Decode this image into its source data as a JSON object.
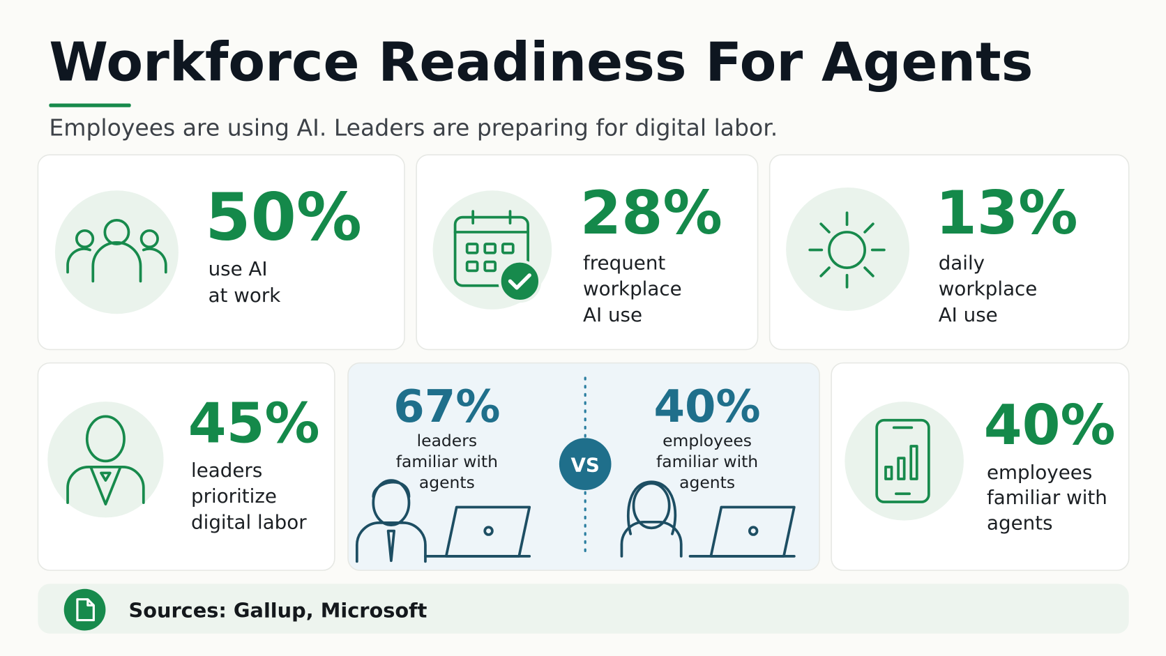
{
  "header": {
    "title": "Workforce Readiness For Agents",
    "subtitle": "Employees are using AI. Leaders are preparing for digital labor."
  },
  "stats": [
    {
      "value": "50%",
      "lines": [
        "use AI",
        "at work"
      ]
    },
    {
      "value": "28%",
      "lines": [
        "frequent",
        "workplace",
        "AI use"
      ]
    },
    {
      "value": "13%",
      "lines": [
        "daily",
        "workplace",
        "AI use"
      ]
    },
    {
      "value": "45%",
      "lines": [
        "leaders",
        "prioritize",
        "digital labor"
      ]
    },
    {
      "value": "40%",
      "lines": [
        "employees",
        "familiar with",
        "agents"
      ]
    }
  ],
  "comparison": {
    "left": {
      "value": "67%",
      "lines": [
        "leaders",
        "familiar with",
        "agents"
      ]
    },
    "vs": "VS",
    "right": {
      "value": "40%",
      "lines": [
        "employees",
        "familiar with",
        "agents"
      ]
    }
  },
  "footer": {
    "sources": "Sources: Gallup, Microsoft"
  }
}
